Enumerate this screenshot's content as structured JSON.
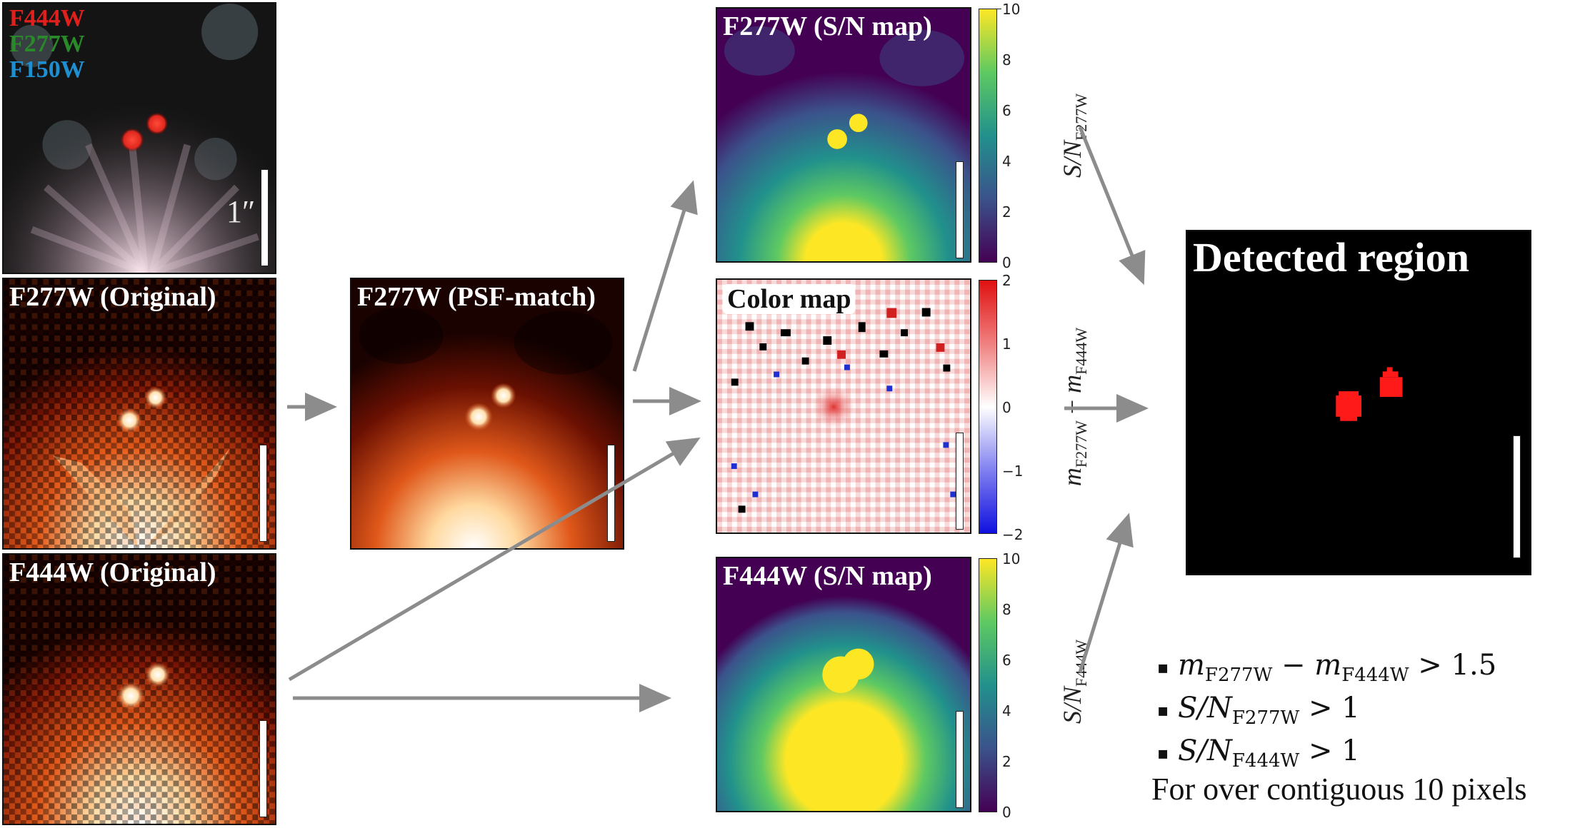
{
  "rgb_panel": {
    "legend": [
      {
        "text": "F444W",
        "color": "#e0201c"
      },
      {
        "text": "F277W",
        "color": "#2a8a2a"
      },
      {
        "text": "F150W",
        "color": "#1e8fd0"
      }
    ],
    "scale_label": "1″"
  },
  "panels": {
    "f277w_original": "F277W (Original)",
    "f444w_original": "F444W (Original)",
    "f277w_psf_match": "F277W (PSF-match)",
    "f277w_sn_map": "F277W (S/N map)",
    "color_map": "Color map",
    "f444w_sn_map": "F444W (S/N map)",
    "detected_region": "Detected region"
  },
  "colorbars": {
    "sn_f277w": {
      "ticks": [
        "10",
        "8",
        "6",
        "4",
        "2",
        "0"
      ],
      "label_main": "S/N",
      "label_sub": "F277W"
    },
    "color": {
      "ticks": [
        "2",
        "1",
        "0",
        "−1",
        "−2"
      ],
      "label_m1": "m",
      "label_sub1": "F277W",
      "label_minus": " − ",
      "label_m2": "m",
      "label_sub2": "F444W"
    },
    "sn_f444w": {
      "ticks": [
        "10",
        "8",
        "6",
        "4",
        "2",
        "0"
      ],
      "label_main": "S/N",
      "label_sub": "F444W"
    }
  },
  "criteria": [
    {
      "bullet": "▪",
      "pre": "m",
      "sub": "F277W",
      "mid": " − m",
      "sub2": "F444W",
      "post": " > 1.5"
    },
    {
      "bullet": "▪",
      "pre": "S/N",
      "sub": "F277W",
      "post": " > 1"
    },
    {
      "bullet": "▪",
      "pre": "S/N",
      "sub": "F444W",
      "post": " > 1"
    }
  ],
  "note": "For over contiguous 10 pixels",
  "colors": {
    "arrow": "#8c8c8c",
    "detected": "#ff1a1a"
  }
}
